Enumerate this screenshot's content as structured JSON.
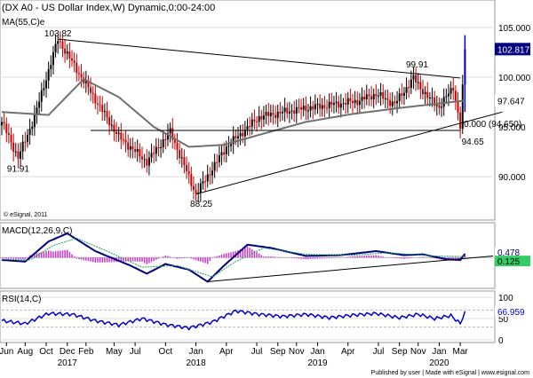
{
  "chart_data": {
    "type": "candlestick",
    "price_panel": {
      "title": "(DX A0 - US Dollar Index,W) Dynamic,0:00-24:00",
      "indicator_label": "MA(55,C)e",
      "watermark": "© eSignal, 2011",
      "y_ticks": [
        "105.000",
        "100.000",
        "95.000",
        "90.000"
      ],
      "ylim": [
        86,
        106.5
      ],
      "annotations": [
        {
          "text": "103.82",
          "value": 103.82
        },
        {
          "text": "99.91",
          "value": 99.91
        },
        {
          "text": "91.91",
          "value": 91.91
        },
        {
          "text": "88.25",
          "value": 88.25
        },
        {
          "text": "94.65",
          "value": 94.65
        },
        {
          "text": "0.000 (94.650)",
          "value": 94.65
        }
      ],
      "price_tags": [
        {
          "text": "102.817",
          "value": 102.817
        },
        {
          "text": "97.647",
          "value": 97.647
        }
      ],
      "series": [
        {
          "name": "DX A0",
          "key_points": [
            {
              "week": 0,
              "value": 95.5
            },
            {
              "week": 7,
              "value": 91.91
            },
            {
              "week": 14,
              "value": 96.0
            },
            {
              "week": 24,
              "value": 103.82
            },
            {
              "week": 34,
              "value": 100.0
            },
            {
              "week": 50,
              "value": 94.0
            },
            {
              "week": 62,
              "value": 91.5
            },
            {
              "week": 72,
              "value": 94.5
            },
            {
              "week": 83,
              "value": 88.25
            },
            {
              "week": 96,
              "value": 93.0
            },
            {
              "week": 110,
              "value": 96.0
            },
            {
              "week": 125,
              "value": 96.7
            },
            {
              "week": 140,
              "value": 97.2
            },
            {
              "week": 152,
              "value": 97.6
            },
            {
              "week": 160,
              "value": 98.3
            },
            {
              "week": 168,
              "value": 97.3
            },
            {
              "week": 176,
              "value": 99.91
            },
            {
              "week": 182,
              "value": 98.0
            },
            {
              "week": 187,
              "value": 97.0
            },
            {
              "week": 193,
              "value": 99.0
            },
            {
              "week": 196,
              "value": 95.0
            },
            {
              "week": 198,
              "value": 102.817
            }
          ]
        },
        {
          "name": "MA(55,C)e",
          "key_points": [
            {
              "week": 0,
              "value": 96.5
            },
            {
              "week": 20,
              "value": 96.2
            },
            {
              "week": 35,
              "value": 99.8
            },
            {
              "week": 50,
              "value": 98.0
            },
            {
              "week": 65,
              "value": 95.0
            },
            {
              "week": 80,
              "value": 93.0
            },
            {
              "week": 95,
              "value": 93.2
            },
            {
              "week": 110,
              "value": 94.2
            },
            {
              "week": 130,
              "value": 95.5
            },
            {
              "week": 150,
              "value": 96.3
            },
            {
              "week": 170,
              "value": 96.9
            },
            {
              "week": 185,
              "value": 97.3
            },
            {
              "week": 198,
              "value": 97.647
            }
          ]
        }
      ],
      "trendlines": [
        {
          "from": {
            "week": 24,
            "value": 103.82
          },
          "to": {
            "week": 196,
            "value": 99.91
          }
        },
        {
          "from": {
            "week": 83,
            "value": 88.25
          },
          "to": {
            "week": 214,
            "value": 96.5
          }
        },
        {
          "from": {
            "week": 38,
            "value": 94.65
          },
          "to": {
            "week": 196,
            "value": 94.65
          }
        }
      ]
    },
    "macd_panel": {
      "label": "MACD(12,26,9,C)",
      "tags": [
        {
          "text": "0.478",
          "value": 0.478
        },
        {
          "text": "0.125",
          "value": 0.125
        }
      ],
      "ylim": [
        -3.5,
        4
      ],
      "macd_points": [
        {
          "week": 0,
          "value": -0.3
        },
        {
          "week": 10,
          "value": -0.5
        },
        {
          "week": 20,
          "value": 2.0
        },
        {
          "week": 28,
          "value": 3.0
        },
        {
          "week": 40,
          "value": 0.8
        },
        {
          "week": 55,
          "value": -1.0
        },
        {
          "week": 62,
          "value": -2.0
        },
        {
          "week": 70,
          "value": -0.8
        },
        {
          "week": 80,
          "value": -1.5
        },
        {
          "week": 88,
          "value": -3.0
        },
        {
          "week": 95,
          "value": -1.0
        },
        {
          "week": 105,
          "value": 1.6
        },
        {
          "week": 115,
          "value": 1.2
        },
        {
          "week": 130,
          "value": 0.2
        },
        {
          "week": 145,
          "value": 0.3
        },
        {
          "week": 160,
          "value": 0.8
        },
        {
          "week": 172,
          "value": 0.3
        },
        {
          "week": 180,
          "value": 0.4
        },
        {
          "week": 190,
          "value": -0.2
        },
        {
          "week": 196,
          "value": -0.3
        },
        {
          "week": 198,
          "value": 0.478
        }
      ],
      "signal_points": [
        {
          "week": 0,
          "value": -0.2
        },
        {
          "week": 12,
          "value": -0.3
        },
        {
          "week": 22,
          "value": 1.5
        },
        {
          "week": 32,
          "value": 2.4
        },
        {
          "week": 45,
          "value": 0.8
        },
        {
          "week": 60,
          "value": -1.2
        },
        {
          "week": 75,
          "value": -1.0
        },
        {
          "week": 90,
          "value": -2.4
        },
        {
          "week": 100,
          "value": -0.5
        },
        {
          "week": 112,
          "value": 1.2
        },
        {
          "week": 130,
          "value": 0.4
        },
        {
          "week": 150,
          "value": 0.3
        },
        {
          "week": 165,
          "value": 0.6
        },
        {
          "week": 185,
          "value": 0.2
        },
        {
          "week": 198,
          "value": 0.125
        }
      ]
    },
    "rsi_panel": {
      "label": "RSI(14,C)",
      "y_ticks": [
        "100",
        "50",
        "0"
      ],
      "tag": {
        "text": "66.959",
        "value": 66.959
      },
      "ylim": [
        0,
        100
      ],
      "points": [
        {
          "week": 0,
          "value": 45
        },
        {
          "week": 10,
          "value": 38
        },
        {
          "week": 20,
          "value": 62
        },
        {
          "week": 30,
          "value": 60
        },
        {
          "week": 40,
          "value": 45
        },
        {
          "week": 50,
          "value": 35
        },
        {
          "week": 60,
          "value": 50
        },
        {
          "week": 70,
          "value": 36
        },
        {
          "week": 80,
          "value": 28
        },
        {
          "week": 90,
          "value": 42
        },
        {
          "week": 100,
          "value": 68
        },
        {
          "week": 110,
          "value": 60
        },
        {
          "week": 120,
          "value": 55
        },
        {
          "week": 130,
          "value": 60
        },
        {
          "week": 140,
          "value": 52
        },
        {
          "week": 150,
          "value": 58
        },
        {
          "week": 160,
          "value": 62
        },
        {
          "week": 170,
          "value": 52
        },
        {
          "week": 178,
          "value": 60
        },
        {
          "week": 185,
          "value": 50
        },
        {
          "week": 192,
          "value": 57
        },
        {
          "week": 196,
          "value": 38
        },
        {
          "week": 198,
          "value": 66.959
        }
      ]
    },
    "x_axis": {
      "months": [
        {
          "label": "Jun",
          "week": 2
        },
        {
          "label": "Aug",
          "week": 10
        },
        {
          "label": "Oct",
          "week": 19
        },
        {
          "label": "Dec",
          "week": 28
        },
        {
          "label": "Feb",
          "week": 36
        },
        {
          "label": "May",
          "week": 48
        },
        {
          "label": "Jul",
          "week": 57
        },
        {
          "label": "Oct",
          "week": 70
        },
        {
          "label": "Jan",
          "week": 83
        },
        {
          "label": "Apr",
          "week": 96
        },
        {
          "label": "Jul",
          "week": 109
        },
        {
          "label": "Sep",
          "week": 118
        },
        {
          "label": "Nov",
          "week": 126
        },
        {
          "label": "Jan",
          "week": 135
        },
        {
          "label": "Apr",
          "week": 148
        },
        {
          "label": "Jul",
          "week": 161
        },
        {
          "label": "Sep",
          "week": 170
        },
        {
          "label": "Nov",
          "week": 178
        },
        {
          "label": "Jan",
          "week": 187
        },
        {
          "label": "Mar",
          "week": 196
        }
      ],
      "years": [
        {
          "label": "2017",
          "week": 28
        },
        {
          "label": "2018",
          "week": 83
        },
        {
          "label": "2019",
          "week": 135
        },
        {
          "label": "2020",
          "week": 187
        }
      ],
      "range": [
        0,
        210
      ]
    },
    "footer": "Published by user | Made with eSignal | www.esignal.com",
    "colors": {
      "up": "#000000",
      "down": "#cc0000",
      "ma": "#707070",
      "macd": "#000080",
      "signal": "#20a060",
      "hist": "#cc33cc",
      "rsi": "#0000cc",
      "tag_bg": "#000080"
    }
  }
}
